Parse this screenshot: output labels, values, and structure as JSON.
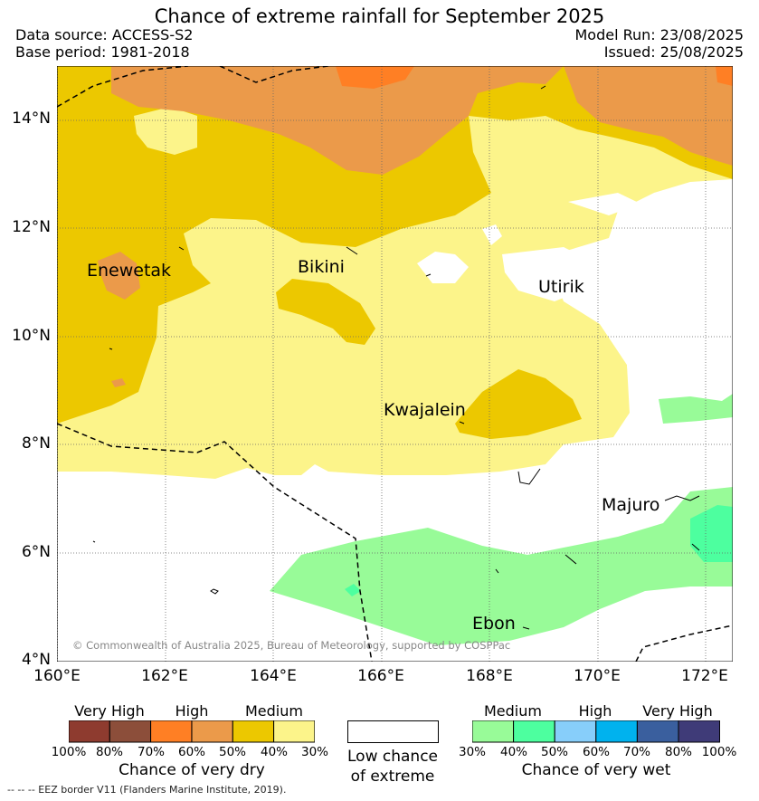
{
  "header": {
    "title": "Chance of extreme rainfall for September 2025",
    "data_source": "Data source: ACCESS-S2",
    "base_period": "Base period: 1981-2018",
    "model_run": "Model Run: 23/08/2025",
    "issued": "Issued: 25/08/2025"
  },
  "map": {
    "lat_labels": [
      "14°N",
      "12°N",
      "10°N",
      "8°N",
      "6°N",
      "4°N"
    ],
    "lon_labels": [
      "160°E",
      "162°E",
      "164°E",
      "166°E",
      "168°E",
      "170°E",
      "172°E"
    ],
    "places": {
      "enewetak": "Enewetak",
      "bikini": "Bikini",
      "utirik": "Utirik",
      "kwajalein": "Kwajalein",
      "majuro": "Majuro",
      "ebon": "Ebon"
    },
    "copyright": "© Commonwealth of Australia 2025, Bureau of Meteorology, supported by COSPPac"
  },
  "legend": {
    "dry": {
      "categories": [
        "Very High",
        "High",
        "Medium"
      ],
      "ticks": [
        "100%",
        "80%",
        "70%",
        "60%",
        "50%",
        "40%",
        "30%"
      ],
      "colors": [
        "#8e3b2f",
        "#8c4e3a",
        "#ff7f24",
        "#eb9a4a",
        "#ecc800",
        "#fcf48a"
      ],
      "title": "Chance of very dry"
    },
    "low": {
      "line1": "Low chance",
      "line2": "of extreme"
    },
    "wet": {
      "categories": [
        "Medium",
        "High",
        "Very High"
      ],
      "ticks": [
        "30%",
        "40%",
        "50%",
        "60%",
        "70%",
        "80%",
        "100%"
      ],
      "colors": [
        "#98fb98",
        "#4dff9f",
        "#87cefa",
        "#00b2ee",
        "#3a5f9e",
        "#3f3b78"
      ],
      "title": "Chance of very wet"
    },
    "footer": "-- -- -- EEZ border V11 (Flanders Marine Institute, 2019)."
  }
}
